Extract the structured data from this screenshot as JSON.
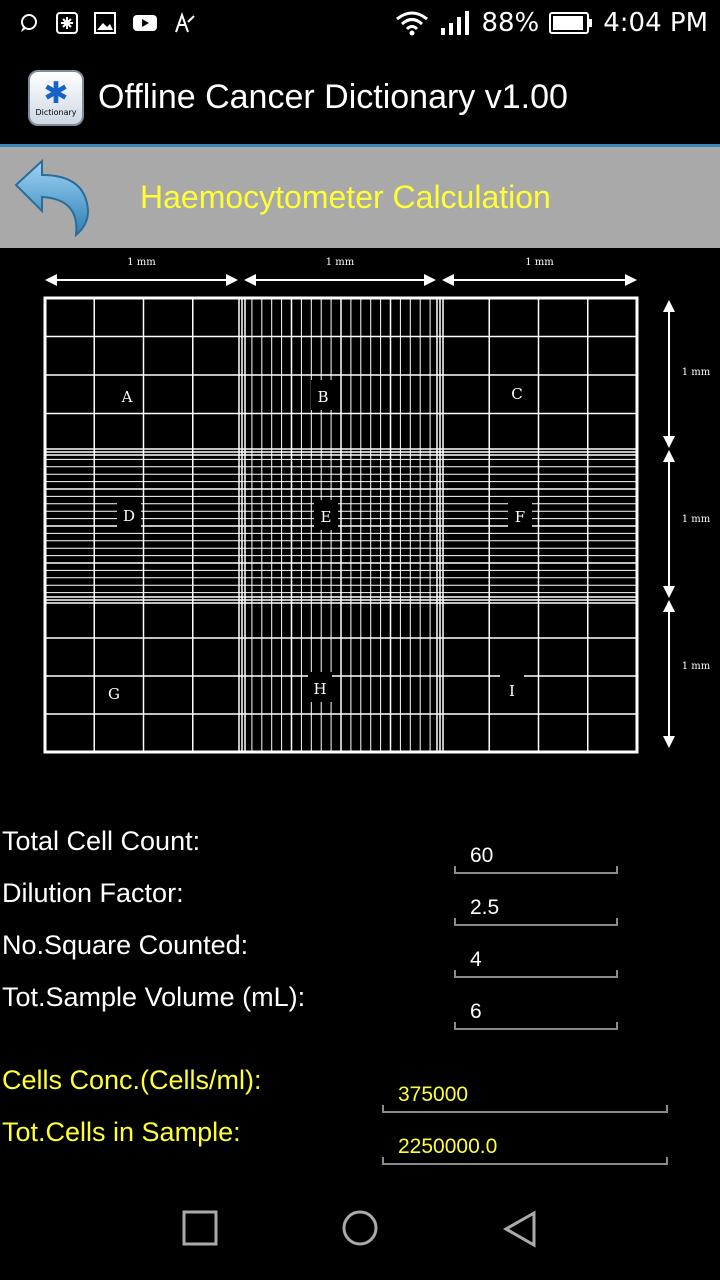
{
  "status_bar": {
    "battery": "88%",
    "time": "4:04 PM",
    "icons": [
      "chat-icon",
      "medical-app-icon",
      "image-icon",
      "youtube-icon",
      "text-icon",
      "wifi-icon",
      "signal-icon",
      "battery-icon"
    ]
  },
  "app_bar": {
    "title": "Offline Cancer Dictionary v1.00",
    "logo_text": "Dictionary"
  },
  "header": {
    "title": "Haemocytometer Calculation",
    "back_icon": "back-arrow-icon"
  },
  "diagram": {
    "top_dims": [
      "1 mm",
      "1 mm",
      "1 mm"
    ],
    "right_dims": [
      "1 mm",
      "1 mm",
      "1 mm"
    ],
    "squares": [
      "A",
      "B",
      "C",
      "D",
      "E",
      "F",
      "G",
      "H",
      "I"
    ]
  },
  "form": {
    "inputs": [
      {
        "label": "Total Cell Count:",
        "value": "60"
      },
      {
        "label": "Dilution Factor:",
        "value": "2.5"
      },
      {
        "label": "No.Square Counted:",
        "value": "4"
      },
      {
        "label": "Tot.Sample Volume (mL):",
        "value": "6"
      }
    ],
    "results": [
      {
        "label": "Cells Conc.(Cells/ml):",
        "value": "375000"
      },
      {
        "label": "Tot.Cells in Sample:",
        "value": "2250000.0"
      }
    ]
  },
  "colors": {
    "accent_yellow": "#ffff33",
    "header_bg": "#a9a9a9",
    "appbar_divider": "#3a86b9"
  }
}
